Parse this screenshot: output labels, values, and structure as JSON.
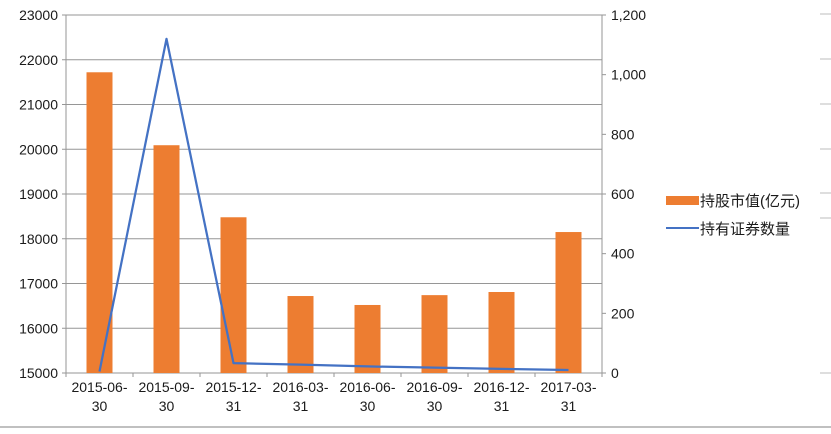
{
  "chart_data": {
    "type": "combo-bar-line",
    "title": "",
    "categories": [
      "2015-06-30",
      "2015-09-30",
      "2015-12-31",
      "2016-03-31",
      "2016-06-30",
      "2016-09-30",
      "2016-12-31",
      "2017-03-31"
    ],
    "series": [
      {
        "name": "持股市值(亿元)",
        "type": "bar",
        "axis": "left",
        "color": "#ED7D31",
        "values": [
          21720,
          20090,
          18480,
          16720,
          16520,
          16740,
          16810,
          18150
        ]
      },
      {
        "name": "持有证券数量",
        "type": "line",
        "axis": "right",
        "color": "#4472C4",
        "values": [
          5,
          1120,
          33,
          28,
          22,
          18,
          14,
          10
        ]
      }
    ],
    "left_axis": {
      "min": 15000,
      "max": 23000,
      "step": 1000,
      "tick_labels": [
        "15000",
        "16000",
        "17000",
        "18000",
        "19000",
        "20000",
        "21000",
        "22000",
        "23000"
      ]
    },
    "right_axis": {
      "min": 0,
      "max": 1200,
      "step": 200,
      "tick_labels": [
        "0",
        "200",
        "400",
        "600",
        "800",
        "1,000",
        "1,200"
      ]
    },
    "grid": true,
    "legend_position": "right"
  },
  "colors": {
    "bar": "#ED7D31",
    "line": "#4472C4",
    "gridline": "#969696",
    "axis_line": "#969696",
    "sheet_line": "#ababab",
    "text": "#1a1a1a",
    "background": "#ffffff"
  }
}
